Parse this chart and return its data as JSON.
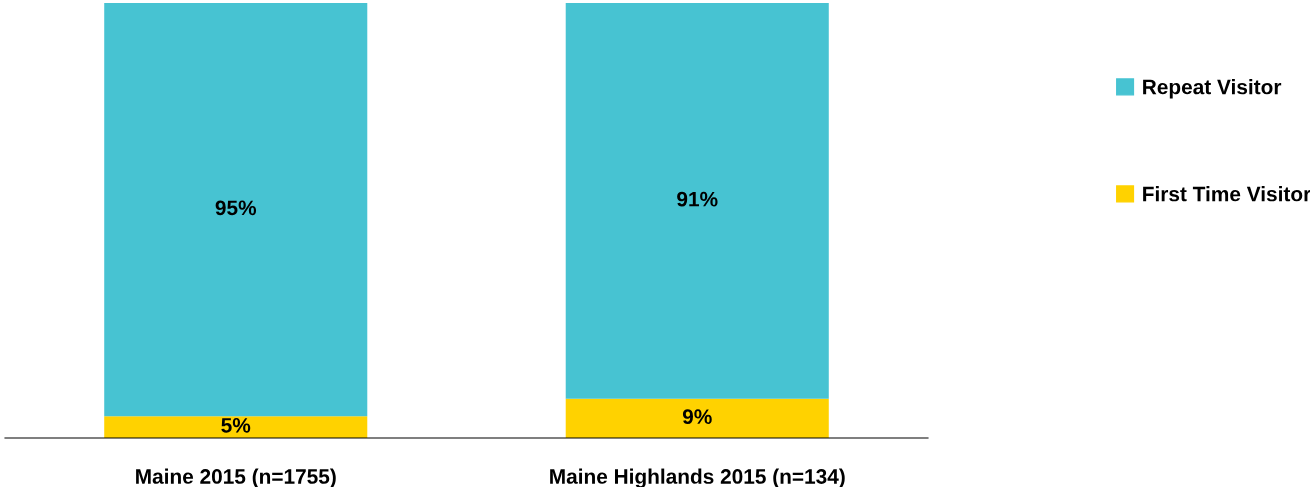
{
  "chart_data": {
    "type": "bar",
    "stacked": true,
    "categories": [
      "Maine 2015 (n=1755)",
      "Maine Highlands 2015 (n=134)"
    ],
    "series": [
      {
        "name": "First Time Visitor",
        "color": "#ffd200",
        "values": [
          5,
          9
        ],
        "value_labels": [
          "5%",
          "9%"
        ]
      },
      {
        "name": "Repeat Visitor",
        "color": "#47c3d2",
        "values": [
          95,
          91
        ],
        "value_labels": [
          "95%",
          "91%"
        ]
      }
    ],
    "legend": "right",
    "tick_labels": "x"
  }
}
